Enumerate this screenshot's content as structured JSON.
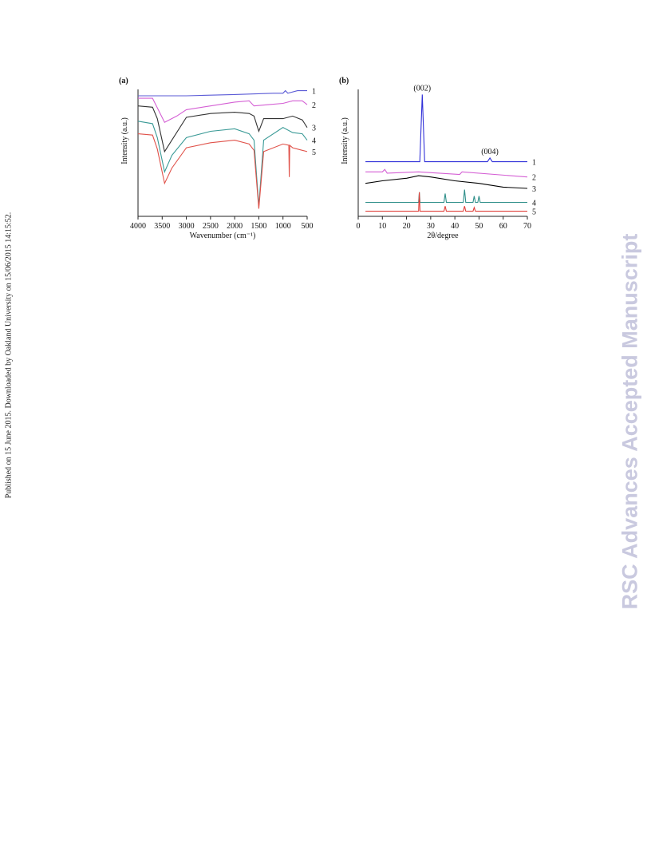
{
  "side_note": "Published on 15 June 2015. Downloaded by Oakland University on 15/06/2015 14:15:52.",
  "watermark": "RSC Advances Accepted Manuscript",
  "chart_data": [
    {
      "type": "line",
      "panel_label": "(a)",
      "xlabel": "Wavenumber (cm⁻¹)",
      "ylabel": "Intensity (a.u.)",
      "xlim": [
        4000,
        500
      ],
      "xticks": [
        4000,
        3500,
        3000,
        2500,
        2000,
        1500,
        1000,
        500
      ],
      "ylim": [
        0,
        100
      ],
      "series": [
        {
          "name": "1",
          "color": "#5b5bd6",
          "x": [
            4000,
            3000,
            2000,
            1200,
            1000,
            950,
            900,
            700,
            500
          ],
          "values": [
            95,
            95,
            96,
            97,
            97,
            99,
            97,
            99,
            99
          ]
        },
        {
          "name": "2",
          "color": "#d45fd4",
          "x": [
            4000,
            3700,
            3450,
            3200,
            3000,
            2500,
            2000,
            1700,
            1600,
            1300,
            1000,
            800,
            600,
            500
          ],
          "values": [
            93,
            93,
            74,
            79,
            84,
            87,
            90,
            91,
            87,
            88,
            89,
            91,
            91,
            88
          ]
        },
        {
          "name": "3",
          "color": "#333333",
          "x": [
            4000,
            3700,
            3600,
            3450,
            3300,
            3000,
            2500,
            2000,
            1700,
            1600,
            1500,
            1400,
            1000,
            800,
            600,
            500
          ],
          "values": [
            87,
            86,
            77,
            51,
            60,
            78,
            81,
            82,
            81,
            79,
            67,
            77,
            77,
            79,
            76,
            70
          ]
        },
        {
          "name": "4",
          "color": "#3a9a96",
          "x": [
            4000,
            3700,
            3600,
            3450,
            3300,
            3000,
            2500,
            2000,
            1700,
            1600,
            1500,
            1400,
            1000,
            800,
            600,
            500
          ],
          "values": [
            75,
            73,
            62,
            35,
            48,
            62,
            67,
            69,
            65,
            60,
            8,
            60,
            70,
            66,
            65,
            60
          ]
        },
        {
          "name": "5",
          "color": "#e0524a",
          "x": [
            4000,
            3700,
            3600,
            3450,
            3300,
            3000,
            2500,
            2000,
            1700,
            1600,
            1500,
            1400,
            1000,
            880,
            870,
            860,
            800,
            600,
            500
          ],
          "values": [
            65,
            64,
            53,
            26,
            38,
            54,
            58,
            60,
            57,
            52,
            6,
            51,
            57,
            56,
            31,
            56,
            54,
            52,
            51
          ]
        }
      ]
    },
    {
      "type": "line",
      "panel_label": "(b)",
      "xlabel": "2θ/degree",
      "ylabel": "Intensity (a.u.)",
      "xlim": [
        0,
        70
      ],
      "xticks": [
        0,
        10,
        20,
        30,
        40,
        50,
        60,
        70
      ],
      "ylim": [
        0,
        100
      ],
      "annotations": [
        "(002)",
        "(004)"
      ],
      "series": [
        {
          "name": "1",
          "color": "#3030d8",
          "x": [
            3,
            25.5,
            26.5,
            27.5,
            53.5,
            54.5,
            55.5,
            70
          ],
          "values": [
            43,
            43,
            96,
            43,
            43,
            46,
            43,
            43
          ]
        },
        {
          "name": "2",
          "color": "#d45fd4",
          "x": [
            3,
            10,
            11,
            12,
            25,
            42,
            43,
            70
          ],
          "values": [
            35,
            35,
            37,
            34,
            35,
            33,
            35,
            31
          ]
        },
        {
          "name": "3",
          "color": "#000000",
          "x": [
            3,
            10,
            20,
            25,
            30,
            40,
            50,
            60,
            70
          ],
          "values": [
            26,
            28,
            30,
            32,
            31,
            28,
            26,
            23,
            22
          ]
        },
        {
          "name": "4",
          "color": "#2f8f8a",
          "x": [
            3,
            25,
            25.3,
            25.6,
            35.5,
            36,
            36.5,
            43.5,
            44,
            44.5,
            47.5,
            48,
            48.5,
            49.5,
            50,
            50.5,
            70
          ],
          "values": [
            11,
            11,
            19,
            11,
            11,
            18,
            11,
            11,
            21,
            11,
            11,
            16,
            11,
            11,
            16,
            11,
            11
          ]
        },
        {
          "name": "5",
          "color": "#e0403a",
          "x": [
            3,
            25,
            25.3,
            25.6,
            35.5,
            36,
            36.5,
            43.5,
            44,
            44.5,
            47.5,
            48,
            48.5,
            70
          ],
          "values": [
            4,
            4,
            19,
            4,
            4,
            8,
            4,
            4,
            8,
            4,
            4,
            7,
            4,
            4
          ]
        }
      ]
    }
  ]
}
